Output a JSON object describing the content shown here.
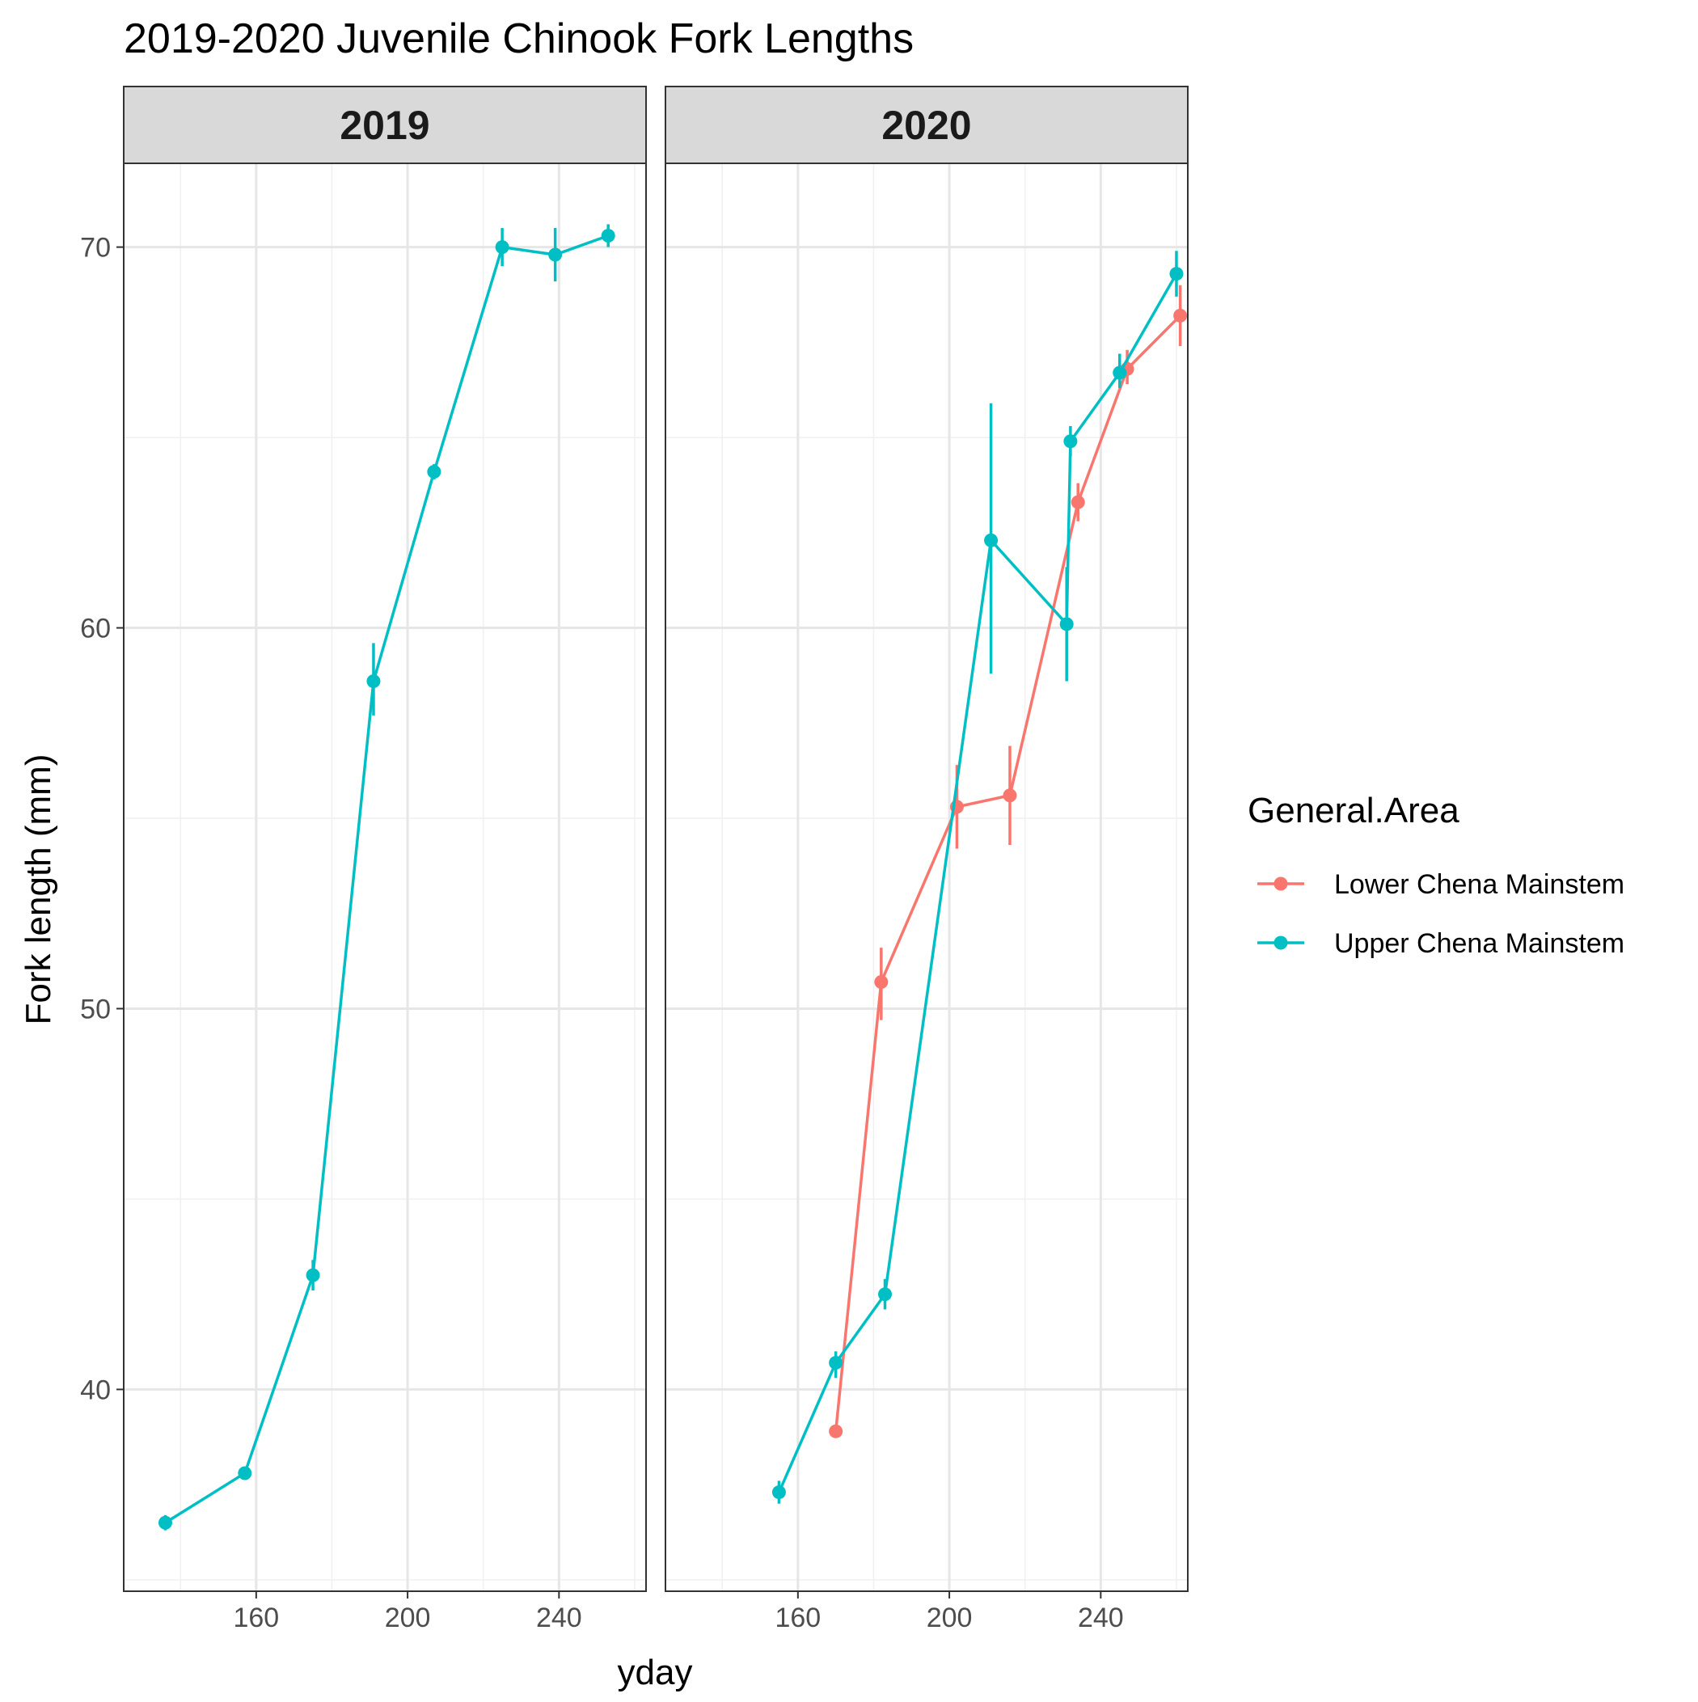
{
  "chart_data": {
    "type": "line",
    "title": "2019-2020 Juvenile Chinook Fork Lengths",
    "xlabel": "yday",
    "ylabel": "Fork length (mm)",
    "xlim": [
      125,
      263
    ],
    "ylim": [
      34.7,
      72.2
    ],
    "x_ticks": [
      160,
      200,
      240
    ],
    "x_minor": [
      140,
      180,
      220,
      260
    ],
    "y_ticks": [
      40,
      50,
      60,
      70
    ],
    "y_minor": [
      35,
      45,
      55,
      65
    ],
    "grid": true,
    "legend_title": "General.Area",
    "legend_position": "right",
    "panels": [
      {
        "label": "2019",
        "series": [
          {
            "name": "Upper Chena Mainstem",
            "color": "#00BFC4",
            "points": [
              {
                "x": 136,
                "y": 36.5,
                "lo": 36.3,
                "hi": 36.7
              },
              {
                "x": 157,
                "y": 37.8,
                "lo": 37.7,
                "hi": 37.9
              },
              {
                "x": 175,
                "y": 43.0,
                "lo": 42.6,
                "hi": 43.4
              },
              {
                "x": 191,
                "y": 58.6,
                "lo": 57.7,
                "hi": 59.6
              },
              {
                "x": 207,
                "y": 64.1,
                "lo": 63.9,
                "hi": 64.3
              },
              {
                "x": 225,
                "y": 70.0,
                "lo": 69.5,
                "hi": 70.5
              },
              {
                "x": 239,
                "y": 69.8,
                "lo": 69.1,
                "hi": 70.5
              },
              {
                "x": 253,
                "y": 70.3,
                "lo": 70.0,
                "hi": 70.6
              }
            ]
          }
        ]
      },
      {
        "label": "2020",
        "series": [
          {
            "name": "Lower Chena Mainstem",
            "color": "#F8766D",
            "points": [
              {
                "x": 170,
                "y": 38.9,
                "lo": 38.9,
                "hi": 38.9
              },
              {
                "x": 182,
                "y": 50.7,
                "lo": 49.7,
                "hi": 51.6
              },
              {
                "x": 202,
                "y": 55.3,
                "lo": 54.2,
                "hi": 56.4
              },
              {
                "x": 216,
                "y": 55.6,
                "lo": 54.3,
                "hi": 56.9
              },
              {
                "x": 234,
                "y": 63.3,
                "lo": 62.8,
                "hi": 63.8
              },
              {
                "x": 247,
                "y": 66.8,
                "lo": 66.4,
                "hi": 67.3
              },
              {
                "x": 261,
                "y": 68.2,
                "lo": 67.4,
                "hi": 69.0
              }
            ]
          },
          {
            "name": "Upper Chena Mainstem",
            "color": "#00BFC4",
            "points": [
              {
                "x": 155,
                "y": 37.3,
                "lo": 37.0,
                "hi": 37.6
              },
              {
                "x": 170,
                "y": 40.7,
                "lo": 40.3,
                "hi": 41.0
              },
              {
                "x": 183,
                "y": 42.5,
                "lo": 42.1,
                "hi": 42.9
              },
              {
                "x": 211,
                "y": 62.3,
                "lo": 58.8,
                "hi": 65.9
              },
              {
                "x": 231,
                "y": 60.1,
                "lo": 58.6,
                "hi": 61.6
              },
              {
                "x": 232,
                "y": 64.9,
                "lo": 64.5,
                "hi": 65.3
              },
              {
                "x": 245,
                "y": 66.7,
                "lo": 66.3,
                "hi": 67.2
              },
              {
                "x": 260,
                "y": 69.3,
                "lo": 68.7,
                "hi": 69.9
              }
            ]
          }
        ]
      }
    ],
    "legend": [
      {
        "name": "Lower Chena Mainstem",
        "color": "#F8766D"
      },
      {
        "name": "Upper Chena Mainstem",
        "color": "#00BFC4"
      }
    ]
  }
}
